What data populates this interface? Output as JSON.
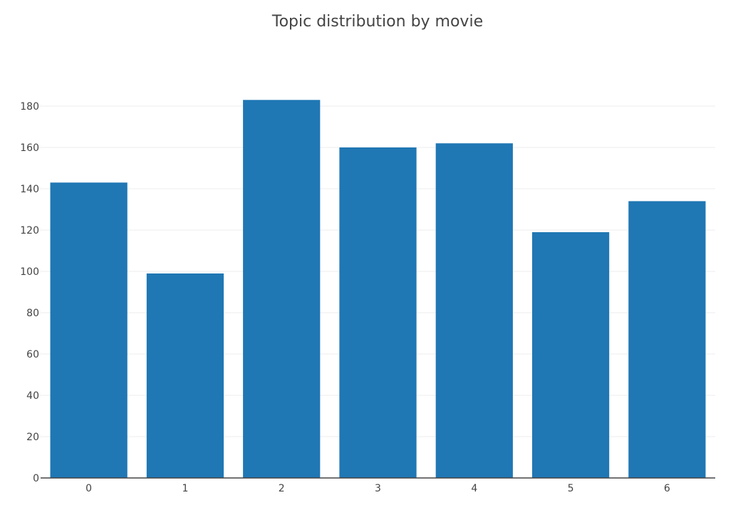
{
  "chart_data": {
    "type": "bar",
    "title": "Topic distribution by movie",
    "xlabel": "",
    "ylabel": "",
    "categories": [
      "0",
      "1",
      "2",
      "3",
      "4",
      "5",
      "6"
    ],
    "values": [
      143,
      99,
      183,
      160,
      162,
      119,
      134
    ],
    "ylim": [
      0,
      190
    ],
    "yticks": [
      0,
      20,
      40,
      60,
      80,
      100,
      120,
      140,
      160,
      180
    ],
    "grid": true,
    "legend": "none",
    "colors": {
      "bar": "#1f77b4",
      "grid": "#eeeeee",
      "axis": "#444444",
      "text": "#444444"
    }
  }
}
